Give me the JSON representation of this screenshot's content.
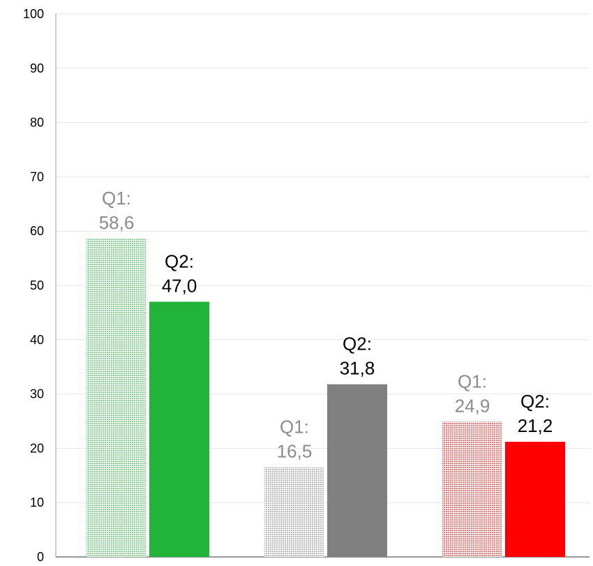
{
  "chart_data": {
    "type": "bar",
    "categories": [
      "",
      "",
      ""
    ],
    "series": [
      {
        "values": [
          58.6,
          16.5,
          24.9
        ],
        "labels": [
          "Q1:\n58,6",
          "Q1:\n16,5",
          "Q1:\n24,9"
        ],
        "pattern": "dotted-light"
      },
      {
        "values": [
          47.0,
          31.8,
          21.2
        ],
        "labels": [
          "Q2:\n47,0",
          "Q2:\n31,8",
          "Q2:\n21,2"
        ],
        "pattern": "solid"
      }
    ],
    "category_colors": [
      "#22b33a",
      "#808080",
      "#ff0000"
    ],
    "q1_label_color": "#8c8c8c",
    "q2_label_color": "#000000",
    "grid_color": "#e6e6e6",
    "axis_color": "#999999",
    "ylim": [
      0,
      100
    ],
    "yticks": [
      "0",
      "10",
      "20",
      "30",
      "40",
      "50",
      "60",
      "70",
      "80",
      "90",
      "100"
    ],
    "grid": true,
    "legend": "none",
    "title": "",
    "xlabel": "",
    "ylabel": ""
  }
}
